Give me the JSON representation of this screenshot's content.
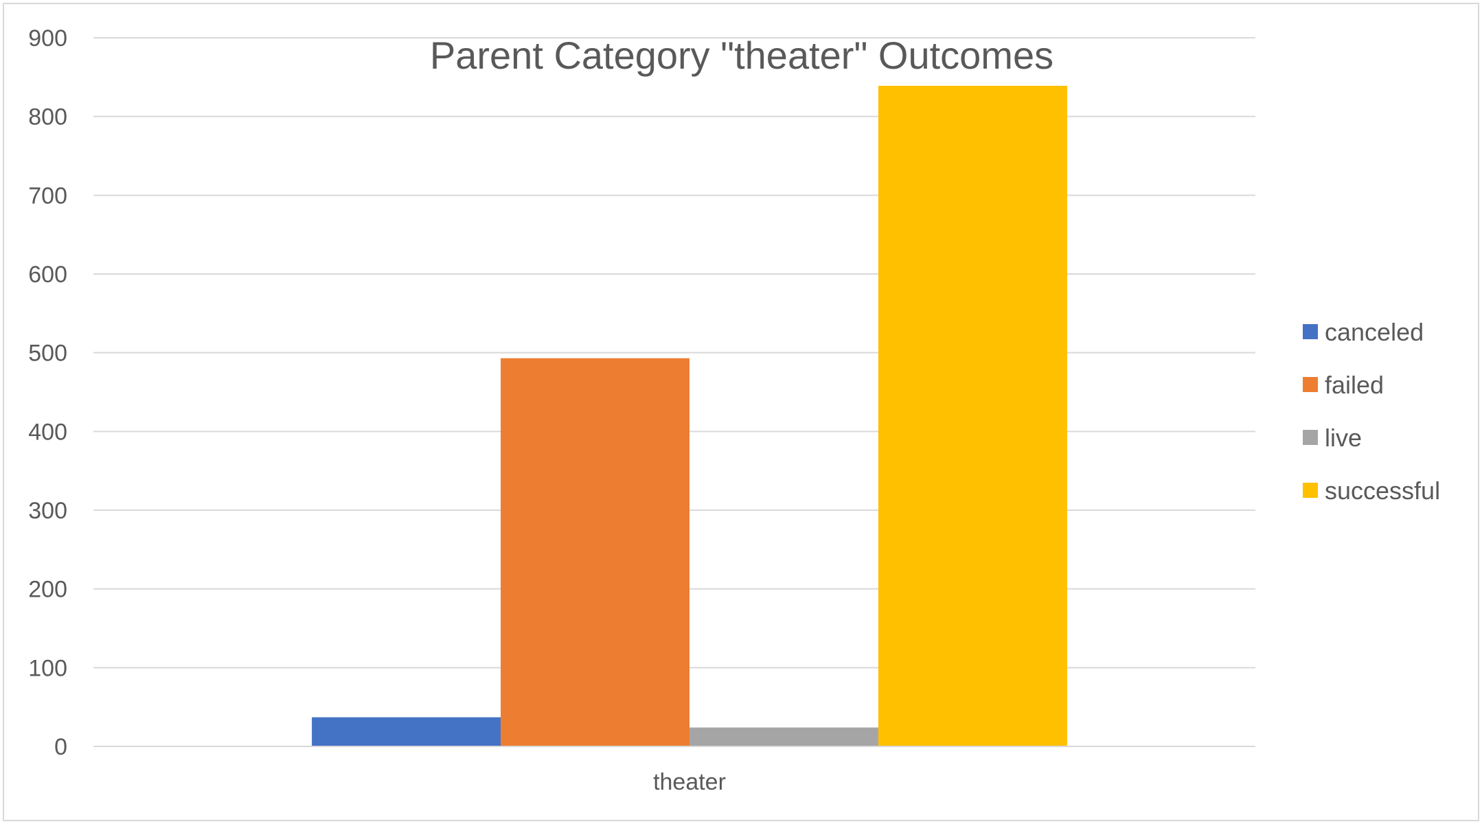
{
  "chart_data": {
    "type": "bar",
    "title": "Parent Category \"theater\" Outcomes",
    "categories": [
      "theater"
    ],
    "series": [
      {
        "name": "canceled",
        "values": [
          37
        ],
        "color": "#4472C4"
      },
      {
        "name": "failed",
        "values": [
          493
        ],
        "color": "#ED7D31"
      },
      {
        "name": "live",
        "values": [
          24
        ],
        "color": "#A5A5A5"
      },
      {
        "name": "successful",
        "values": [
          839
        ],
        "color": "#FFC000"
      }
    ],
    "xlabel": "",
    "ylabel": "",
    "ylim": [
      0,
      900
    ],
    "yticks": [
      0,
      100,
      200,
      300,
      400,
      500,
      600,
      700,
      800,
      900
    ],
    "grid": true,
    "legend": "right"
  }
}
